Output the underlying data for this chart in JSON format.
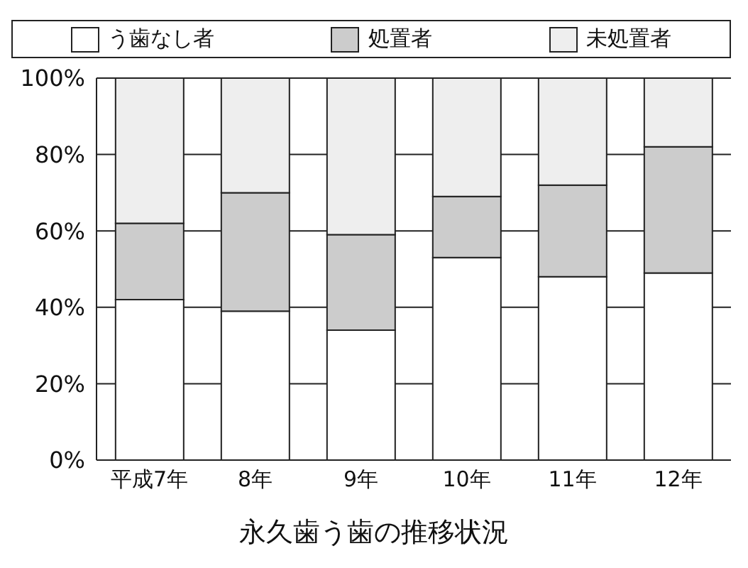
{
  "chart_data": {
    "type": "bar",
    "stacked": true,
    "title": "永久歯う歯の推移状況",
    "categories": [
      "平成7年",
      "8年",
      "9年",
      "10年",
      "11年",
      "12年"
    ],
    "series": [
      {
        "name": "う歯なし者",
        "color": "#ffffff",
        "values": [
          42,
          39,
          34,
          53,
          48,
          49
        ]
      },
      {
        "name": "処置者",
        "color": "#cccccc",
        "values": [
          20,
          31,
          25,
          16,
          24,
          33
        ]
      },
      {
        "name": "未処置者",
        "color": "#eeeeee",
        "values": [
          38,
          30,
          41,
          31,
          28,
          18
        ]
      }
    ],
    "ylim": [
      0,
      100
    ],
    "yticks": [
      {
        "value": 0,
        "label": "0%"
      },
      {
        "value": 20,
        "label": "20%"
      },
      {
        "value": 40,
        "label": "40%"
      },
      {
        "value": 60,
        "label": "60%"
      },
      {
        "value": 80,
        "label": "80%"
      },
      {
        "value": 100,
        "label": "100%"
      }
    ],
    "grid": "y",
    "legend": "top"
  }
}
